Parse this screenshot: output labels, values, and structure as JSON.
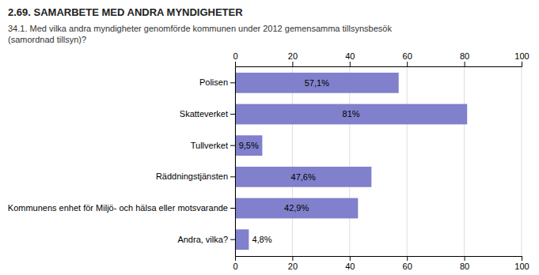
{
  "chart_data": {
    "type": "bar",
    "orientation": "horizontal",
    "title": "2.69. SAMARBETE MED ANDRA MYNDIGHETER",
    "subtitle": "34.1. Med vilka andra myndigheter genomförde kommunen under 2012 gemensamma tillsynsbesök\n(samordnad tillsyn)?",
    "categories": [
      "Polisen",
      "Skatteverket",
      "Tullverket",
      "Räddningstjänsten",
      "Kommunens enhet för Miljö- och hälsa eller motsvarande",
      "Andra, vilka?"
    ],
    "values": [
      57.1,
      81.0,
      9.5,
      47.6,
      42.9,
      4.8
    ],
    "value_labels": [
      "57,1%",
      "81%",
      "9,5%",
      "47,6%",
      "42,9%",
      "4,8%"
    ],
    "data_labels": true,
    "color": "#8080cc",
    "xlim": [
      0,
      100
    ],
    "xticks": [
      0,
      20,
      40,
      60,
      80,
      100
    ],
    "grid": true
  }
}
